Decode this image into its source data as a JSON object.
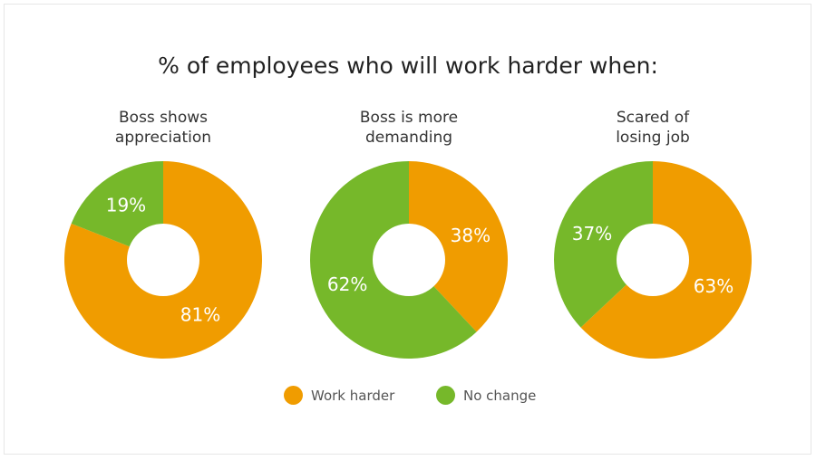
{
  "chart_data": {
    "type": "pie",
    "title": "% of employees who will work harder when:",
    "legend": [
      {
        "label": "Work harder",
        "color": "#F09C00"
      },
      {
        "label": "No change",
        "color": "#76B82A"
      }
    ],
    "legend_position": "bottom",
    "charts": [
      {
        "title": "Boss shows appreciation",
        "title_lines": [
          "Boss shows",
          "appreciation"
        ],
        "values": [
          81,
          19
        ],
        "labels": [
          "81%",
          "19%"
        ]
      },
      {
        "title": "Boss is more demanding",
        "title_lines": [
          "Boss is more",
          "demanding"
        ],
        "values": [
          38,
          62
        ],
        "labels": [
          "38%",
          "62%"
        ]
      },
      {
        "title": "Scared of losing job",
        "title_lines": [
          "Scared of",
          "losing job"
        ],
        "values": [
          63,
          37
        ],
        "labels": [
          "63%",
          "37%"
        ]
      }
    ]
  }
}
